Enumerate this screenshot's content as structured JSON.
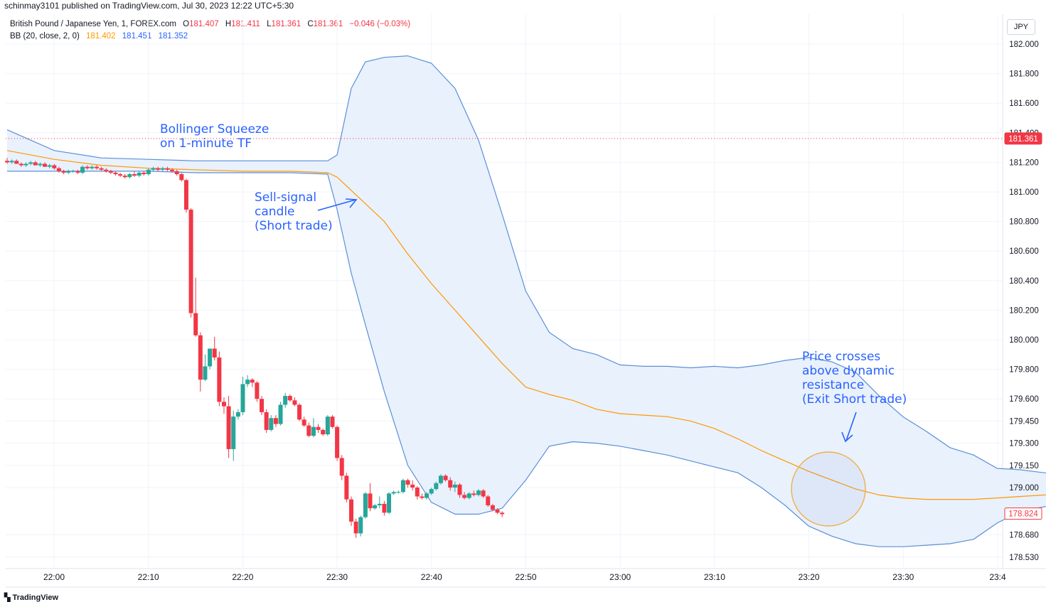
{
  "header": {
    "published": "schinmay3101 published on TradingView.com, Jul 30, 2023 12:22 UTC+5:30"
  },
  "legend": {
    "symbol": "British Pound / Japanese Yen, 1, FOREX.com",
    "o_label": "O",
    "o_value": "181.407",
    "h_label": "H",
    "h_value": "181.411",
    "l_label": "L",
    "l_value": "181.361",
    "c_label": "C",
    "c_value": "181.361",
    "change": "−0.046 (−0.03%)",
    "bb_label": "BB (20, close, 2, 0)",
    "bb_basis": "181.402",
    "bb_upper": "181.451",
    "bb_lower": "181.352"
  },
  "currency": "JPY",
  "footer": {
    "logo_text": "TradingView"
  },
  "colors": {
    "up": "#26a69a",
    "down": "#f23645",
    "basis": "#ff9800",
    "band": "#5b8fd9",
    "fill": "#e9f1fc",
    "annotation": "#2962ff",
    "circle": "#f0b04a",
    "current_price_line": "#f23645"
  },
  "chart_data": {
    "type": "candlestick",
    "timeframe": "1",
    "x_ticks": [
      "22:00",
      "22:10",
      "22:20",
      "22:30",
      "22:40",
      "22:50",
      "23:00",
      "23:10",
      "23:20",
      "23:30",
      "23:4"
    ],
    "y_ticks": [
      "182.000",
      "181.800",
      "181.600",
      "181.400",
      "181.200",
      "181.000",
      "180.800",
      "180.600",
      "180.400",
      "180.200",
      "180.000",
      "179.800",
      "179.600",
      "179.450",
      "179.300",
      "179.150",
      "179.000",
      "178.680",
      "178.530"
    ],
    "ylim": [
      178.5,
      182.1
    ],
    "current_price": "181.361",
    "last_price": "178.824",
    "candles": [
      {
        "o": 181.21,
        "h": 181.23,
        "l": 181.19,
        "c": 181.2
      },
      {
        "o": 181.2,
        "h": 181.22,
        "l": 181.19,
        "c": 181.21
      },
      {
        "o": 181.21,
        "h": 181.22,
        "l": 181.19,
        "c": 181.19
      },
      {
        "o": 181.19,
        "h": 181.2,
        "l": 181.17,
        "c": 181.18
      },
      {
        "o": 181.18,
        "h": 181.2,
        "l": 181.17,
        "c": 181.19
      },
      {
        "o": 181.19,
        "h": 181.21,
        "l": 181.18,
        "c": 181.2
      },
      {
        "o": 181.2,
        "h": 181.21,
        "l": 181.18,
        "c": 181.18
      },
      {
        "o": 181.18,
        "h": 181.2,
        "l": 181.17,
        "c": 181.19
      },
      {
        "o": 181.19,
        "h": 181.2,
        "l": 181.17,
        "c": 181.17
      },
      {
        "o": 181.17,
        "h": 181.19,
        "l": 181.16,
        "c": 181.18
      },
      {
        "o": 181.18,
        "h": 181.19,
        "l": 181.15,
        "c": 181.16
      },
      {
        "o": 181.16,
        "h": 181.17,
        "l": 181.13,
        "c": 181.14
      },
      {
        "o": 181.14,
        "h": 181.15,
        "l": 181.12,
        "c": 181.13
      },
      {
        "o": 181.13,
        "h": 181.15,
        "l": 181.12,
        "c": 181.14
      },
      {
        "o": 181.14,
        "h": 181.15,
        "l": 181.13,
        "c": 181.14
      },
      {
        "o": 181.14,
        "h": 181.15,
        "l": 181.12,
        "c": 181.13
      },
      {
        "o": 181.13,
        "h": 181.18,
        "l": 181.12,
        "c": 181.17
      },
      {
        "o": 181.17,
        "h": 181.18,
        "l": 181.15,
        "c": 181.16
      },
      {
        "o": 181.16,
        "h": 181.18,
        "l": 181.15,
        "c": 181.17
      },
      {
        "o": 181.17,
        "h": 181.18,
        "l": 181.15,
        "c": 181.16
      },
      {
        "o": 181.16,
        "h": 181.17,
        "l": 181.14,
        "c": 181.15
      },
      {
        "o": 181.15,
        "h": 181.16,
        "l": 181.13,
        "c": 181.14
      },
      {
        "o": 181.14,
        "h": 181.15,
        "l": 181.12,
        "c": 181.13
      },
      {
        "o": 181.13,
        "h": 181.14,
        "l": 181.11,
        "c": 181.12
      },
      {
        "o": 181.12,
        "h": 181.13,
        "l": 181.1,
        "c": 181.11
      },
      {
        "o": 181.11,
        "h": 181.12,
        "l": 181.09,
        "c": 181.1
      },
      {
        "o": 181.1,
        "h": 181.13,
        "l": 181.09,
        "c": 181.12
      },
      {
        "o": 181.12,
        "h": 181.14,
        "l": 181.1,
        "c": 181.11
      },
      {
        "o": 181.11,
        "h": 181.14,
        "l": 181.1,
        "c": 181.13
      },
      {
        "o": 181.13,
        "h": 181.14,
        "l": 181.11,
        "c": 181.12
      },
      {
        "o": 181.12,
        "h": 181.16,
        "l": 181.11,
        "c": 181.15
      },
      {
        "o": 181.15,
        "h": 181.17,
        "l": 181.14,
        "c": 181.16
      },
      {
        "o": 181.16,
        "h": 181.17,
        "l": 181.14,
        "c": 181.15
      },
      {
        "o": 181.15,
        "h": 181.17,
        "l": 181.14,
        "c": 181.16
      },
      {
        "o": 181.16,
        "h": 181.17,
        "l": 181.14,
        "c": 181.15
      },
      {
        "o": 181.15,
        "h": 181.16,
        "l": 181.13,
        "c": 181.14
      },
      {
        "o": 181.14,
        "h": 181.15,
        "l": 181.11,
        "c": 181.12
      },
      {
        "o": 181.12,
        "h": 181.13,
        "l": 181.07,
        "c": 181.08
      },
      {
        "o": 181.08,
        "h": 181.09,
        "l": 180.86,
        "c": 180.88
      },
      {
        "o": 180.88,
        "h": 180.89,
        "l": 180.15,
        "c": 180.18
      },
      {
        "o": 180.18,
        "h": 180.42,
        "l": 180.02,
        "c": 180.03
      },
      {
        "o": 180.03,
        "h": 180.05,
        "l": 179.65,
        "c": 179.73
      },
      {
        "o": 179.73,
        "h": 179.9,
        "l": 179.72,
        "c": 179.82
      },
      {
        "o": 179.82,
        "h": 179.93,
        "l": 179.8,
        "c": 179.94
      },
      {
        "o": 179.94,
        "h": 180.02,
        "l": 179.86,
        "c": 179.88
      },
      {
        "o": 179.88,
        "h": 179.92,
        "l": 179.55,
        "c": 179.58
      },
      {
        "o": 179.58,
        "h": 179.61,
        "l": 179.5,
        "c": 179.55
      },
      {
        "o": 179.55,
        "h": 179.62,
        "l": 179.2,
        "c": 179.26
      },
      {
        "o": 179.26,
        "h": 179.52,
        "l": 179.18,
        "c": 179.48
      },
      {
        "o": 179.48,
        "h": 179.53,
        "l": 179.46,
        "c": 179.51
      },
      {
        "o": 179.51,
        "h": 179.75,
        "l": 179.49,
        "c": 179.7
      },
      {
        "o": 179.7,
        "h": 179.76,
        "l": 179.68,
        "c": 179.73
      },
      {
        "o": 179.73,
        "h": 179.74,
        "l": 179.68,
        "c": 179.71
      },
      {
        "o": 179.71,
        "h": 179.72,
        "l": 179.58,
        "c": 179.6
      },
      {
        "o": 179.6,
        "h": 179.62,
        "l": 179.49,
        "c": 179.51
      },
      {
        "o": 179.51,
        "h": 179.53,
        "l": 179.37,
        "c": 179.39
      },
      {
        "o": 179.39,
        "h": 179.49,
        "l": 179.38,
        "c": 179.47
      },
      {
        "o": 179.47,
        "h": 179.49,
        "l": 179.41,
        "c": 179.43
      },
      {
        "o": 179.43,
        "h": 179.58,
        "l": 179.42,
        "c": 179.56
      },
      {
        "o": 179.56,
        "h": 179.64,
        "l": 179.54,
        "c": 179.62
      },
      {
        "o": 179.62,
        "h": 179.63,
        "l": 179.58,
        "c": 179.59
      },
      {
        "o": 179.59,
        "h": 179.61,
        "l": 179.55,
        "c": 179.56
      },
      {
        "o": 179.56,
        "h": 179.57,
        "l": 179.45,
        "c": 179.46
      },
      {
        "o": 179.46,
        "h": 179.48,
        "l": 179.41,
        "c": 179.42
      },
      {
        "o": 179.42,
        "h": 179.44,
        "l": 179.34,
        "c": 179.35
      },
      {
        "o": 179.35,
        "h": 179.47,
        "l": 179.34,
        "c": 179.41
      },
      {
        "o": 179.41,
        "h": 179.43,
        "l": 179.37,
        "c": 179.39
      },
      {
        "o": 179.39,
        "h": 179.4,
        "l": 179.35,
        "c": 179.36
      },
      {
        "o": 179.36,
        "h": 179.49,
        "l": 179.35,
        "c": 179.48
      },
      {
        "o": 179.48,
        "h": 179.49,
        "l": 179.4,
        "c": 179.41
      },
      {
        "o": 179.41,
        "h": 179.42,
        "l": 179.18,
        "c": 179.2
      },
      {
        "o": 179.2,
        "h": 179.22,
        "l": 179.05,
        "c": 179.08
      },
      {
        "o": 179.08,
        "h": 179.1,
        "l": 178.9,
        "c": 178.92
      },
      {
        "o": 178.92,
        "h": 178.94,
        "l": 178.74,
        "c": 178.77
      },
      {
        "o": 178.77,
        "h": 178.79,
        "l": 178.66,
        "c": 178.69
      },
      {
        "o": 178.69,
        "h": 178.81,
        "l": 178.67,
        "c": 178.8
      },
      {
        "o": 178.8,
        "h": 178.97,
        "l": 178.79,
        "c": 178.96
      },
      {
        "o": 178.96,
        "h": 179.03,
        "l": 178.84,
        "c": 178.86
      },
      {
        "o": 178.86,
        "h": 178.89,
        "l": 178.85,
        "c": 178.88
      },
      {
        "o": 178.88,
        "h": 178.94,
        "l": 178.86,
        "c": 178.89
      },
      {
        "o": 178.89,
        "h": 178.91,
        "l": 178.81,
        "c": 178.83
      },
      {
        "o": 178.83,
        "h": 178.97,
        "l": 178.82,
        "c": 178.96
      },
      {
        "o": 178.96,
        "h": 178.98,
        "l": 178.95,
        "c": 178.97
      },
      {
        "o": 178.97,
        "h": 178.98,
        "l": 178.96,
        "c": 178.97
      },
      {
        "o": 178.97,
        "h": 179.06,
        "l": 178.96,
        "c": 179.05
      },
      {
        "o": 179.05,
        "h": 179.06,
        "l": 179.0,
        "c": 179.02
      },
      {
        "o": 179.02,
        "h": 179.05,
        "l": 178.98,
        "c": 179.0
      },
      {
        "o": 179.0,
        "h": 179.01,
        "l": 178.92,
        "c": 178.94
      },
      {
        "o": 178.94,
        "h": 178.96,
        "l": 178.92,
        "c": 178.93
      },
      {
        "o": 178.93,
        "h": 178.97,
        "l": 178.92,
        "c": 178.96
      },
      {
        "o": 178.96,
        "h": 179.0,
        "l": 178.95,
        "c": 178.99
      },
      {
        "o": 178.99,
        "h": 179.04,
        "l": 178.98,
        "c": 179.03
      },
      {
        "o": 179.03,
        "h": 179.09,
        "l": 179.02,
        "c": 179.08
      },
      {
        "o": 179.08,
        "h": 179.09,
        "l": 179.04,
        "c": 179.05
      },
      {
        "o": 179.05,
        "h": 179.07,
        "l": 178.98,
        "c": 179.0
      },
      {
        "o": 179.0,
        "h": 179.04,
        "l": 178.97,
        "c": 179.02
      },
      {
        "o": 179.02,
        "h": 179.03,
        "l": 178.93,
        "c": 178.95
      },
      {
        "o": 178.95,
        "h": 178.97,
        "l": 178.92,
        "c": 178.93
      },
      {
        "o": 178.93,
        "h": 178.97,
        "l": 178.92,
        "c": 178.96
      },
      {
        "o": 178.96,
        "h": 178.98,
        "l": 178.94,
        "c": 178.95
      },
      {
        "o": 178.95,
        "h": 178.99,
        "l": 178.94,
        "c": 178.98
      },
      {
        "o": 178.98,
        "h": 178.99,
        "l": 178.93,
        "c": 178.94
      },
      {
        "o": 178.94,
        "h": 178.95,
        "l": 178.87,
        "c": 178.88
      },
      {
        "o": 178.88,
        "h": 178.89,
        "l": 178.84,
        "c": 178.85
      },
      {
        "o": 178.85,
        "h": 178.86,
        "l": 178.82,
        "c": 178.83
      },
      {
        "o": 178.83,
        "h": 178.84,
        "l": 178.8,
        "c": 178.82
      }
    ],
    "bb_upper": [
      [
        0,
        181.42
      ],
      [
        10,
        181.28
      ],
      [
        20,
        181.23
      ],
      [
        30,
        181.22
      ],
      [
        40,
        181.21
      ],
      [
        50,
        181.21
      ],
      [
        60,
        181.21
      ],
      [
        68,
        181.21
      ],
      [
        70,
        181.25
      ],
      [
        73,
        181.7
      ],
      [
        76,
        181.88
      ],
      [
        80,
        181.91
      ],
      [
        85,
        181.92
      ],
      [
        90,
        181.87
      ],
      [
        95,
        181.7
      ],
      [
        100,
        181.35
      ],
      [
        105,
        180.85
      ],
      [
        110,
        180.33
      ],
      [
        115,
        180.05
      ],
      [
        120,
        179.94
      ],
      [
        125,
        179.9
      ],
      [
        130,
        179.83
      ],
      [
        135,
        179.82
      ],
      [
        140,
        179.82
      ],
      [
        145,
        179.81
      ],
      [
        150,
        179.82
      ],
      [
        155,
        179.81
      ],
      [
        160,
        179.83
      ],
      [
        165,
        179.86
      ],
      [
        170,
        179.88
      ],
      [
        175,
        179.85
      ],
      [
        180,
        179.78
      ],
      [
        185,
        179.62
      ],
      [
        190,
        179.48
      ],
      [
        195,
        179.38
      ],
      [
        200,
        179.27
      ],
      [
        205,
        179.22
      ],
      [
        210,
        179.13
      ],
      [
        215,
        179.12
      ],
      [
        220,
        179.1
      ],
      [
        225,
        179.1
      ],
      [
        230,
        179.09
      ],
      [
        235,
        179.09
      ],
      [
        240,
        179.09
      ],
      [
        245,
        179.1
      ],
      [
        250,
        179.11
      ],
      [
        255,
        179.12
      ]
    ],
    "bb_lower": [
      [
        0,
        181.14
      ],
      [
        10,
        181.14
      ],
      [
        20,
        181.14
      ],
      [
        30,
        181.14
      ],
      [
        40,
        181.13
      ],
      [
        50,
        181.13
      ],
      [
        60,
        181.13
      ],
      [
        68,
        181.12
      ],
      [
        70,
        180.88
      ],
      [
        73,
        180.45
      ],
      [
        76,
        180.1
      ],
      [
        80,
        179.65
      ],
      [
        85,
        179.15
      ],
      [
        90,
        178.9
      ],
      [
        95,
        178.82
      ],
      [
        100,
        178.82
      ],
      [
        105,
        178.86
      ],
      [
        110,
        179.05
      ],
      [
        115,
        179.28
      ],
      [
        120,
        179.31
      ],
      [
        125,
        179.3
      ],
      [
        130,
        179.28
      ],
      [
        135,
        179.25
      ],
      [
        140,
        179.22
      ],
      [
        145,
        179.18
      ],
      [
        150,
        179.14
      ],
      [
        155,
        179.1
      ],
      [
        160,
        179.0
      ],
      [
        165,
        178.88
      ],
      [
        170,
        178.74
      ],
      [
        175,
        178.67
      ],
      [
        180,
        178.62
      ],
      [
        185,
        178.6
      ],
      [
        190,
        178.6
      ],
      [
        195,
        178.61
      ],
      [
        200,
        178.62
      ],
      [
        205,
        178.65
      ],
      [
        210,
        178.76
      ],
      [
        215,
        178.84
      ],
      [
        220,
        178.87
      ],
      [
        225,
        178.89
      ],
      [
        230,
        178.89
      ],
      [
        235,
        178.89
      ],
      [
        240,
        178.87
      ],
      [
        245,
        178.83
      ],
      [
        250,
        178.81
      ],
      [
        255,
        178.8
      ]
    ],
    "bb_basis": [
      [
        0,
        181.28
      ],
      [
        10,
        181.22
      ],
      [
        20,
        181.18
      ],
      [
        30,
        181.16
      ],
      [
        40,
        181.15
      ],
      [
        50,
        181.14
      ],
      [
        60,
        181.14
      ],
      [
        68,
        181.13
      ],
      [
        70,
        181.1
      ],
      [
        75,
        180.95
      ],
      [
        80,
        180.8
      ],
      [
        85,
        180.58
      ],
      [
        90,
        180.38
      ],
      [
        95,
        180.2
      ],
      [
        100,
        180.02
      ],
      [
        105,
        179.84
      ],
      [
        110,
        179.68
      ],
      [
        115,
        179.63
      ],
      [
        120,
        179.59
      ],
      [
        125,
        179.53
      ],
      [
        130,
        179.5
      ],
      [
        135,
        179.49
      ],
      [
        140,
        179.48
      ],
      [
        145,
        179.45
      ],
      [
        150,
        179.4
      ],
      [
        155,
        179.33
      ],
      [
        160,
        179.25
      ],
      [
        165,
        179.18
      ],
      [
        170,
        179.11
      ],
      [
        175,
        179.05
      ],
      [
        180,
        178.99
      ],
      [
        185,
        178.95
      ],
      [
        190,
        178.93
      ],
      [
        195,
        178.92
      ],
      [
        200,
        178.92
      ],
      [
        205,
        178.92
      ],
      [
        210,
        178.93
      ],
      [
        215,
        178.94
      ],
      [
        220,
        178.95
      ],
      [
        225,
        178.96
      ],
      [
        230,
        178.96
      ],
      [
        235,
        178.96
      ],
      [
        240,
        178.95
      ],
      [
        245,
        178.94
      ],
      [
        250,
        178.93
      ],
      [
        255,
        178.91
      ]
    ],
    "annotations": [
      {
        "lines": [
          "Bollinger Squeeze",
          "on 1-minute TF"
        ]
      },
      {
        "lines": [
          "Sell-signal",
          "candle",
          "(Short trade)"
        ]
      },
      {
        "lines": [
          "Price crosses",
          "above dynamic",
          "resistance",
          "(Exit Short trade)"
        ]
      }
    ]
  }
}
